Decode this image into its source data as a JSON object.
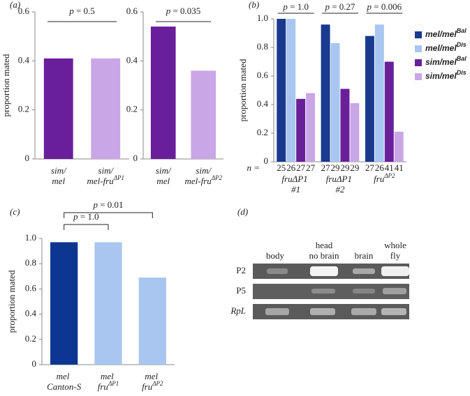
{
  "chart_data": [
    {
      "type": "bar",
      "panel": "(a)",
      "ylabel": "proportion mated",
      "categories": [
        "sim/mel",
        "sim/mel-fruΔP1"
      ],
      "values": [
        0.41,
        0.41
      ],
      "colors": [
        "#6a1f9a",
        "#c9a6e6"
      ],
      "ylim": [
        0,
        0.6
      ],
      "yticks": [
        0,
        0.2,
        0.4,
        0.6
      ],
      "annotations": [
        "p = 0.5"
      ]
    },
    {
      "type": "bar",
      "categories": [
        "sim/mel",
        "sim/mel-fruΔP2"
      ],
      "values": [
        0.54,
        0.36
      ],
      "colors": [
        "#6a1f9a",
        "#c9a6e6"
      ],
      "ylim": [
        0,
        0.6
      ],
      "yticks": [
        0,
        0.2,
        0.4,
        0.6
      ],
      "annotations": [
        "p = 0.035"
      ]
    },
    {
      "type": "grouped-bar",
      "panel": "(b)",
      "ylabel": "proportion mated",
      "categories": [
        "fruΔP1 #1",
        "fruΔP1 #2",
        "fruΔP2"
      ],
      "n_label": "n =",
      "series": [
        {
          "name": "mel/melBal",
          "color": "#1a3a8f",
          "values": [
            1.0,
            0.96,
            0.88
          ],
          "n": [
            25,
            27,
            27
          ]
        },
        {
          "name": "mel/melDis",
          "color": "#a9c6f0",
          "values": [
            1.0,
            0.83,
            0.96
          ],
          "n": [
            26,
            29,
            26
          ]
        },
        {
          "name": "sim/melBal",
          "color": "#6a1f9a",
          "values": [
            0.44,
            0.51,
            0.7
          ],
          "n": [
            27,
            29,
            41
          ]
        },
        {
          "name": "sim/melDis",
          "color": "#c9a6e6",
          "values": [
            0.48,
            0.41,
            0.21
          ],
          "n": [
            27,
            29,
            41
          ]
        }
      ],
      "ylim": [
        0,
        1
      ],
      "yticks": [
        0,
        0.2,
        0.4,
        0.6,
        0.8,
        {
          "value": 1,
          "label": "1.0"
        }
      ],
      "annotations": [
        "p = 1.0",
        "p = 0.27",
        "p = 0.006"
      ]
    },
    {
      "type": "bar",
      "panel": "(c)",
      "ylabel": "proportion mated",
      "categories": [
        "mel Canton-S",
        "mel fruΔP1",
        "mel fruΔP2"
      ],
      "values": [
        0.97,
        0.97,
        0.69
      ],
      "colors": [
        "#0d3592",
        "#a9c6f0",
        "#a9c6f0"
      ],
      "ylim": [
        0,
        1
      ],
      "yticks": [
        0,
        0.2,
        0.4,
        0.6,
        0.8,
        {
          "value": 1,
          "label": "1.0"
        }
      ],
      "annotations": [
        "p = 1.0",
        "p = 0.01"
      ]
    }
  ],
  "gel": {
    "panel": "(d)",
    "columns": [
      [
        "body"
      ],
      [
        "head",
        "no brain"
      ],
      [
        "brain"
      ],
      [
        "whole",
        "fly"
      ]
    ],
    "rows": [
      "P2",
      "P5",
      "RpL"
    ]
  }
}
